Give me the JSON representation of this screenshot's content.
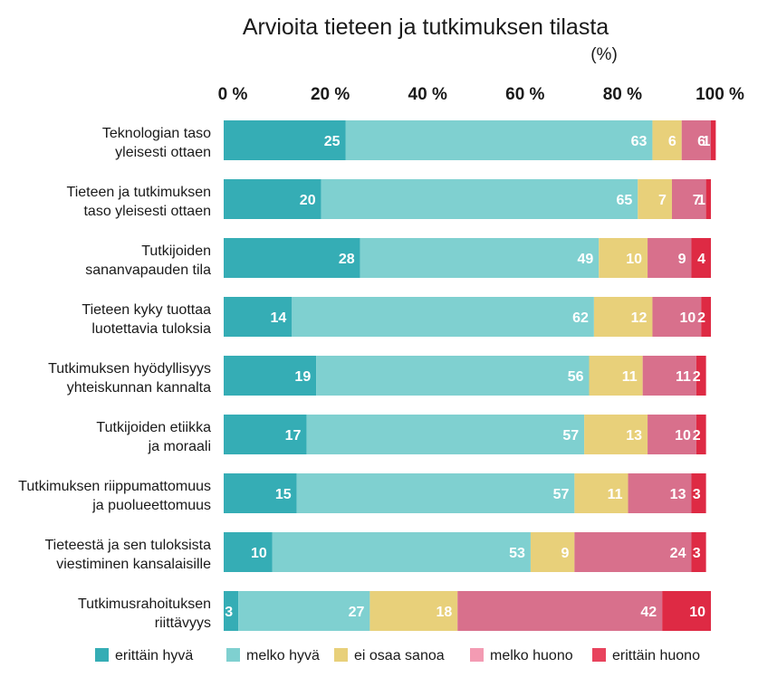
{
  "chart_data": {
    "type": "bar",
    "orientation": "horizontal",
    "stacked": true,
    "title": "Arvioita tieteen ja tutkimuksen tilasta",
    "unit": "(%)",
    "xlim": [
      0,
      100
    ],
    "x_ticks": [
      "0 %",
      "20 %",
      "40 %",
      "60 %",
      "80 %",
      "100 %"
    ],
    "legend_position": "bottom",
    "categories": [
      [
        "Teknologian taso",
        "yleisesti ottaen"
      ],
      [
        "Tieteen ja tutkimuksen",
        "taso yleisesti ottaen"
      ],
      [
        "Tutkijoiden",
        "sananvapauden tila"
      ],
      [
        "Tieteen kyky tuottaa",
        "luotettavia tuloksia"
      ],
      [
        "Tutkimuksen hyödyllisyys",
        "yhteiskunnan kannalta"
      ],
      [
        "Tutkijoiden etiikka",
        "ja moraali"
      ],
      [
        "Tutkimuksen riippumattomuus",
        "ja puolueettomuus"
      ],
      [
        "Tieteestä ja sen tuloksista",
        "viestiminen kansalaisille"
      ],
      [
        "Tutkimusrahoituksen",
        "riittävyys"
      ]
    ],
    "series": [
      {
        "name": "erittäin hyvä",
        "color": "#35adb5",
        "values": [
          25,
          20,
          28,
          14,
          19,
          17,
          15,
          10,
          3
        ]
      },
      {
        "name": "melko hyvä",
        "color": "#7fd0d0",
        "values": [
          63,
          65,
          49,
          62,
          56,
          57,
          57,
          53,
          27
        ]
      },
      {
        "name": "ei osaa sanoa",
        "color": "#e8d07a",
        "values": [
          6,
          7,
          10,
          12,
          11,
          13,
          11,
          9,
          18
        ]
      },
      {
        "name": "melko huono",
        "color": "#d8708c",
        "values": [
          6,
          7,
          9,
          10,
          11,
          10,
          13,
          24,
          42
        ]
      },
      {
        "name": "erittäin huono",
        "color": "#de2a44",
        "values": [
          1,
          1,
          4,
          2,
          2,
          2,
          3,
          3,
          10
        ]
      }
    ],
    "legend_colors": [
      "#35adb5",
      "#7fd0d0",
      "#e8d07a",
      "#f39bb3",
      "#e8435d"
    ]
  }
}
